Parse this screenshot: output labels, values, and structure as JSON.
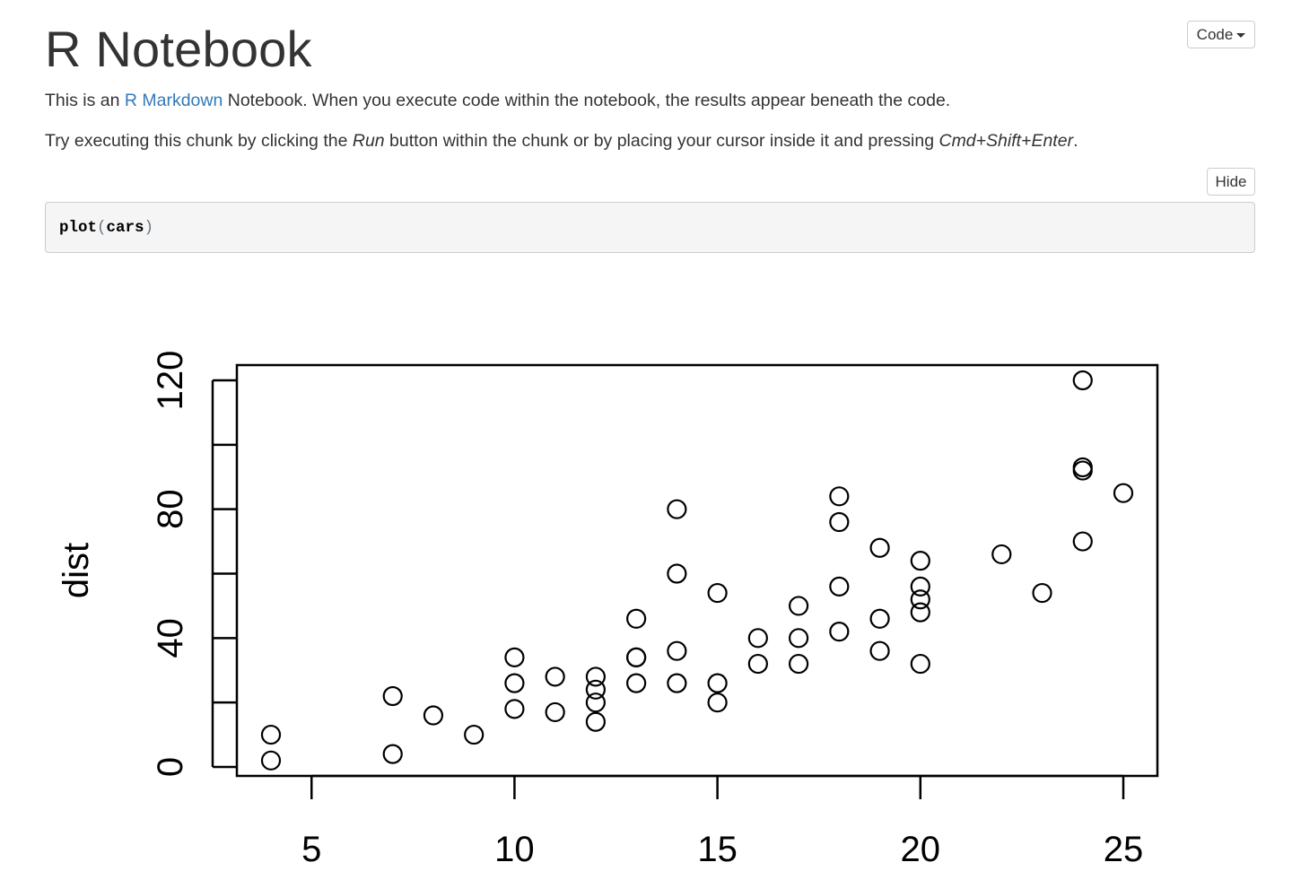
{
  "page": {
    "title": "R Notebook",
    "code_menu_label": "Code",
    "intro": {
      "before": "This is an ",
      "link": "R Markdown",
      "after": " Notebook. When you execute code within the notebook, the results appear beneath the code."
    },
    "instructions": {
      "part1": "Try executing this chunk by clicking the ",
      "run": "Run",
      "part2": " button within the chunk or by placing your cursor inside it and pressing ",
      "shortcut": "Cmd+Shift+Enter",
      "part3": "."
    },
    "hide_label": "Hide",
    "code": {
      "fn": "plot",
      "open": "(",
      "arg": "cars",
      "close": ")"
    }
  },
  "chart_data": {
    "type": "scatter",
    "title": "",
    "xlabel": "",
    "ylabel": "dist",
    "xlim": [
      4,
      25
    ],
    "ylim": [
      0,
      120
    ],
    "x_ticks": [
      5,
      10,
      15,
      20,
      25
    ],
    "y_ticks": [
      0,
      20,
      40,
      60,
      80,
      100,
      120
    ],
    "y_tick_labels": [
      "0",
      "40",
      "80",
      "120"
    ],
    "marker": "open-circle",
    "points": [
      [
        4,
        2
      ],
      [
        4,
        10
      ],
      [
        7,
        4
      ],
      [
        7,
        22
      ],
      [
        8,
        16
      ],
      [
        9,
        10
      ],
      [
        10,
        18
      ],
      [
        10,
        26
      ],
      [
        10,
        34
      ],
      [
        11,
        17
      ],
      [
        11,
        28
      ],
      [
        12,
        14
      ],
      [
        12,
        20
      ],
      [
        12,
        24
      ],
      [
        12,
        28
      ],
      [
        13,
        26
      ],
      [
        13,
        34
      ],
      [
        13,
        34
      ],
      [
        13,
        46
      ],
      [
        14,
        26
      ],
      [
        14,
        36
      ],
      [
        14,
        60
      ],
      [
        14,
        80
      ],
      [
        15,
        20
      ],
      [
        15,
        26
      ],
      [
        15,
        54
      ],
      [
        16,
        32
      ],
      [
        16,
        40
      ],
      [
        17,
        32
      ],
      [
        17,
        40
      ],
      [
        17,
        50
      ],
      [
        18,
        42
      ],
      [
        18,
        56
      ],
      [
        18,
        76
      ],
      [
        18,
        84
      ],
      [
        19,
        36
      ],
      [
        19,
        46
      ],
      [
        19,
        68
      ],
      [
        20,
        32
      ],
      [
        20,
        48
      ],
      [
        20,
        52
      ],
      [
        20,
        56
      ],
      [
        20,
        64
      ],
      [
        22,
        66
      ],
      [
        23,
        54
      ],
      [
        24,
        70
      ],
      [
        24,
        92
      ],
      [
        24,
        93
      ],
      [
        24,
        120
      ],
      [
        25,
        85
      ]
    ]
  }
}
